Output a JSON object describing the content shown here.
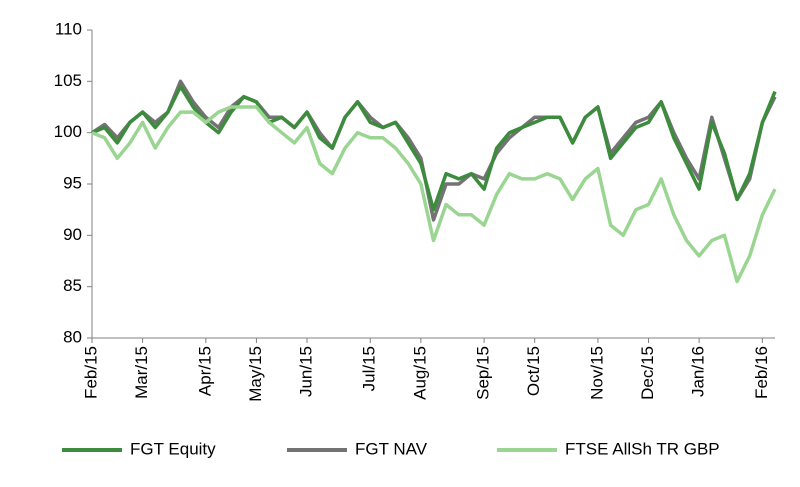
{
  "chart_data": {
    "type": "line",
    "categories": [
      "Feb/15",
      null,
      null,
      null,
      "Mar/15",
      null,
      null,
      null,
      null,
      "Apr/15",
      null,
      null,
      null,
      "May/15",
      null,
      null,
      null,
      "Jun/15",
      null,
      null,
      null,
      null,
      "Jul/15",
      null,
      null,
      null,
      "Aug/15",
      null,
      null,
      null,
      null,
      "Sep/15",
      null,
      null,
      null,
      "Oct/15",
      null,
      null,
      null,
      null,
      "Nov/15",
      null,
      null,
      null,
      "Dec/15",
      null,
      null,
      null,
      "Jan/16",
      null,
      null,
      null,
      null,
      "Feb/16",
      null
    ],
    "series": [
      {
        "name": "FGT Equity",
        "color": "#3d8b3d",
        "values": [
          100,
          100.5,
          99,
          101,
          102,
          100.5,
          102,
          104.5,
          102.5,
          101,
          100,
          102,
          103.5,
          103,
          101,
          101.5,
          100.5,
          102,
          99.5,
          98.5,
          101.5,
          103,
          101,
          100.5,
          101,
          99,
          97,
          92.5,
          96,
          95.5,
          96,
          94.5,
          98.5,
          100,
          100.5,
          101,
          101.5,
          101.5,
          99,
          101.5,
          102.5,
          97.5,
          99,
          100.5,
          101,
          103,
          99.5,
          97,
          94.5,
          101,
          98,
          93.5,
          96,
          101,
          104
        ]
      },
      {
        "name": "FGT NAV",
        "color": "#737373",
        "values": [
          100,
          100.8,
          99.5,
          101,
          102,
          101,
          102,
          105,
          103,
          101.5,
          100.5,
          102.5,
          103.5,
          103,
          101.5,
          101.5,
          100.5,
          102,
          100,
          98.5,
          101.5,
          103,
          101.5,
          100.5,
          101,
          99.5,
          97.5,
          91.5,
          95,
          95,
          96,
          95.5,
          98,
          99.5,
          100.5,
          101.5,
          101.5,
          101.5,
          99,
          101.5,
          102.5,
          98,
          99.5,
          101,
          101.5,
          103,
          100,
          97.5,
          95.5,
          101.5,
          97.5,
          93.5,
          95.5,
          101,
          103.5
        ]
      },
      {
        "name": "FTSE AllSh TR GBP",
        "color": "#9bd592",
        "values": [
          100,
          99.5,
          97.5,
          99,
          101,
          98.5,
          100.5,
          102,
          102,
          101,
          102,
          102.5,
          102.5,
          102.5,
          101,
          100,
          99,
          100.5,
          97,
          96,
          98.5,
          100,
          99.5,
          99.5,
          98.5,
          97,
          95,
          89.5,
          93,
          92,
          92,
          91,
          94,
          96,
          95.5,
          95.5,
          96,
          95.5,
          93.5,
          95.5,
          96.5,
          91,
          90,
          92.5,
          93,
          95.5,
          92,
          89.5,
          88,
          89.5,
          90,
          85.5,
          88,
          92,
          94.5
        ]
      }
    ],
    "ylim": [
      80,
      110
    ],
    "yticks": [
      80,
      85,
      90,
      95,
      100,
      105,
      110
    ],
    "grid": false,
    "legend": "bottom"
  }
}
